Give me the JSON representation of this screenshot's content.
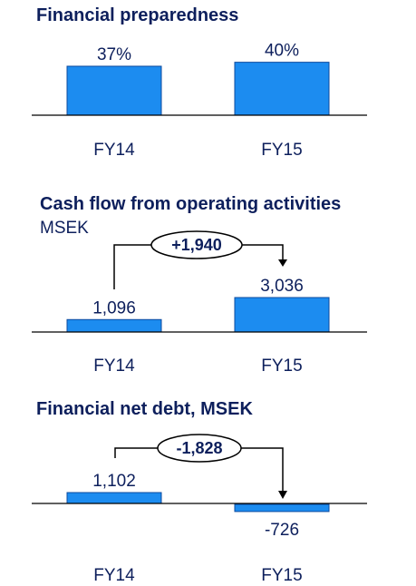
{
  "colors": {
    "bar": "#1c8cf0",
    "bar_stroke": "#0d4a9e",
    "text": "#0d1f5c",
    "axis": "#000000"
  },
  "chart_data": [
    {
      "type": "bar",
      "title": "Financial preparedness",
      "subtitle": "",
      "categories": [
        "FY14",
        "FY15"
      ],
      "values": [
        37,
        40
      ],
      "value_labels": [
        "37%",
        "40%"
      ],
      "unit": "%"
    },
    {
      "type": "bar",
      "title": "Cash flow from operating activities",
      "subtitle": "MSEK",
      "categories": [
        "FY14",
        "FY15"
      ],
      "values": [
        1096,
        3036
      ],
      "value_labels": [
        "1,096",
        "3,036"
      ],
      "change": "+1,940"
    },
    {
      "type": "bar",
      "title": "Financial net debt, MSEK",
      "subtitle": "",
      "categories": [
        "FY14",
        "FY15"
      ],
      "values": [
        1102,
        -726
      ],
      "value_labels": [
        "1,102",
        "-726"
      ],
      "change": "-1,828"
    }
  ]
}
